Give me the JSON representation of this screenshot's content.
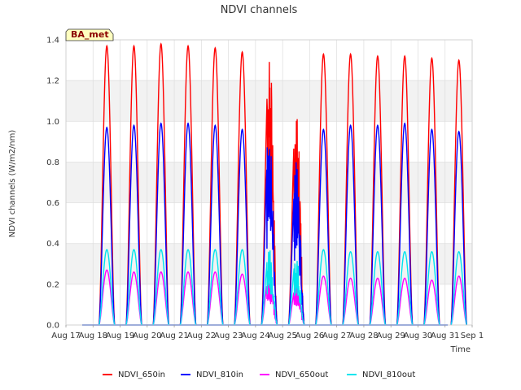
{
  "chart_data": {
    "type": "line",
    "title": "NDVI channels",
    "xlabel": "Time",
    "ylabel": "NDVI channels (W/m2/nm)",
    "badge": "BA_met",
    "ylim": [
      0.0,
      1.4
    ],
    "yticks": [
      "0.0",
      "0.2",
      "0.4",
      "0.6",
      "0.8",
      "1.0",
      "1.2",
      "1.4"
    ],
    "xlim": [
      17,
      32
    ],
    "xticks": [
      "Aug 17",
      "Aug 18",
      "Aug 19",
      "Aug 20",
      "Aug 21",
      "Aug 22",
      "Aug 23",
      "Aug 24",
      "Aug 25",
      "Aug 26",
      "Aug 27",
      "Aug 28",
      "Aug 29",
      "Aug 30",
      "Aug 31",
      "Sep 1"
    ],
    "grid": true,
    "legend_position": "bottom",
    "days": [
      "Aug 18",
      "Aug 19",
      "Aug 20",
      "Aug 21",
      "Aug 22",
      "Aug 23",
      "Aug 24",
      "Aug 25",
      "Aug 26",
      "Aug 27",
      "Aug 28",
      "Aug 29",
      "Aug 30",
      "Aug 31"
    ],
    "series": [
      {
        "name": "NDVI_650in",
        "color": "#ff0000",
        "daily_peak": [
          1.37,
          1.37,
          1.38,
          1.37,
          1.36,
          1.34,
          1.32,
          1.09,
          1.33,
          1.33,
          1.32,
          1.32,
          1.31,
          1.3
        ]
      },
      {
        "name": "NDVI_810in",
        "color": "#0000ff",
        "daily_peak": [
          0.97,
          0.98,
          0.99,
          0.99,
          0.98,
          0.96,
          0.96,
          0.78,
          0.96,
          0.98,
          0.98,
          0.99,
          0.96,
          0.95
        ]
      },
      {
        "name": "NDVI_650out",
        "color": "#ff00ff",
        "daily_peak": [
          0.27,
          0.26,
          0.26,
          0.26,
          0.26,
          0.25,
          0.24,
          0.2,
          0.24,
          0.23,
          0.23,
          0.23,
          0.22,
          0.24
        ]
      },
      {
        "name": "NDVI_810out",
        "color": "#00e5ee",
        "daily_peak": [
          0.37,
          0.37,
          0.37,
          0.37,
          0.37,
          0.37,
          0.36,
          0.33,
          0.37,
          0.36,
          0.36,
          0.36,
          0.36,
          0.36
        ]
      }
    ]
  }
}
